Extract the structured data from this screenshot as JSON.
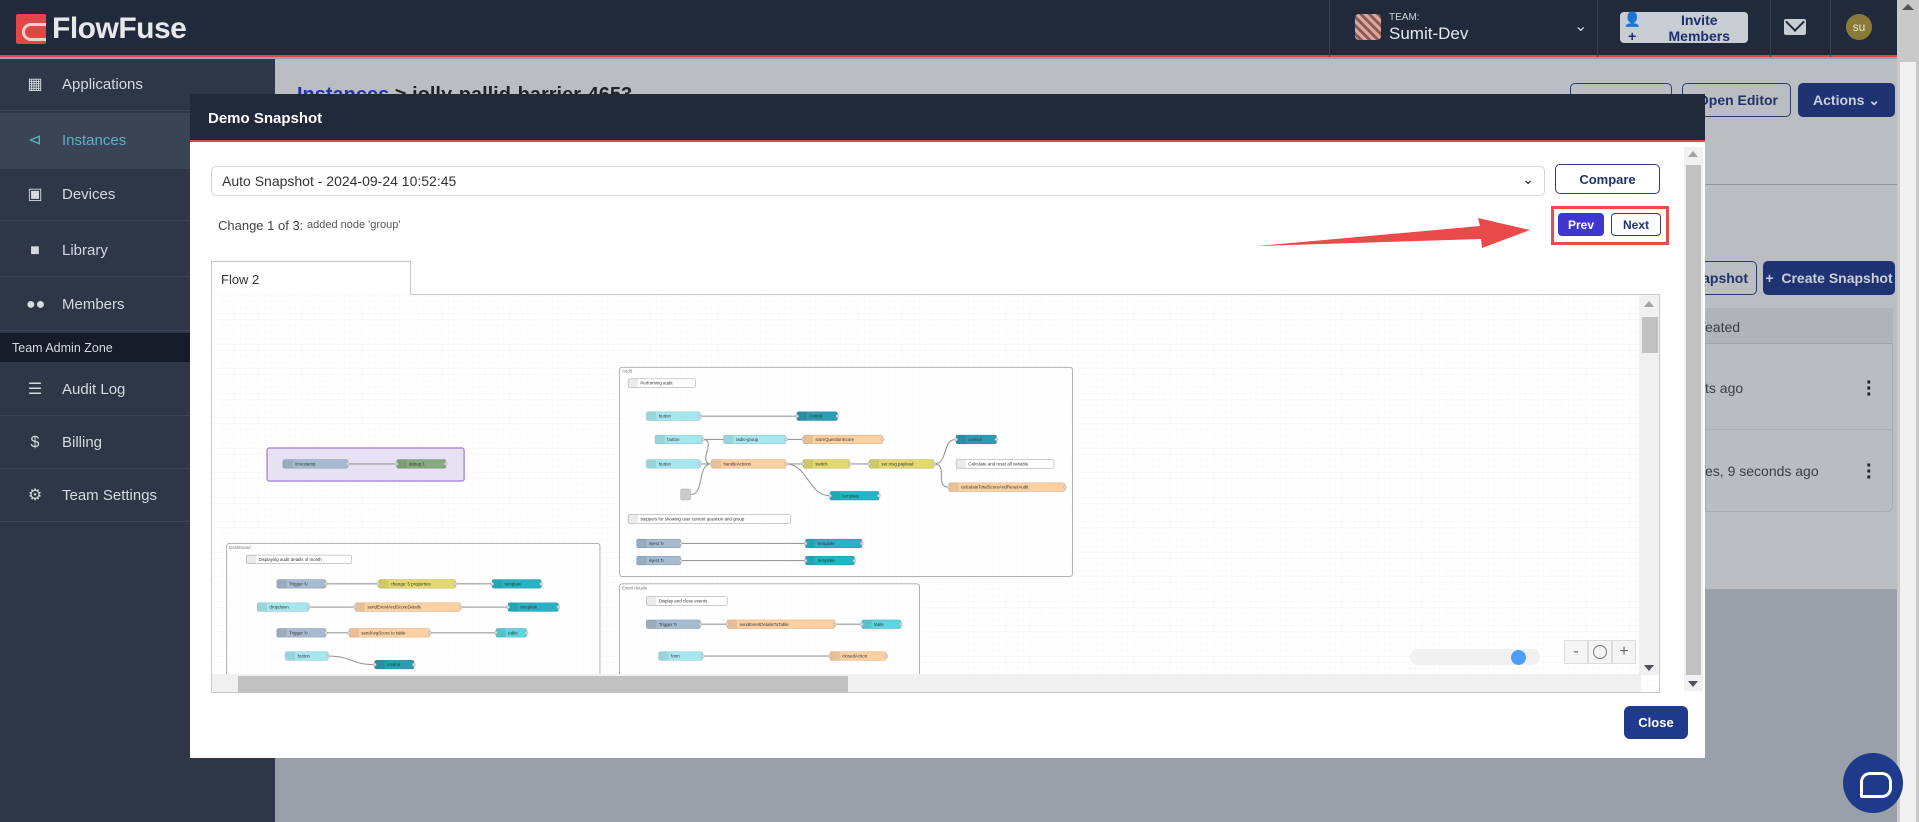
{
  "header": {
    "brand": "FlowFuse",
    "team_label": "TEAM:",
    "team_name": "Sumit-Dev",
    "invite_label": "Invite Members",
    "avatar_initials": "su"
  },
  "sidebar": {
    "items": [
      {
        "label": "Applications",
        "icon": "applications-icon"
      },
      {
        "label": "Instances",
        "icon": "instances-icon",
        "active": true
      },
      {
        "label": "Devices",
        "icon": "devices-icon"
      },
      {
        "label": "Library",
        "icon": "folder-icon"
      },
      {
        "label": "Members",
        "icon": "users-icon"
      }
    ],
    "admin_zone": "Team Admin Zone",
    "admin_items": [
      {
        "label": "Audit Log",
        "icon": "database-icon"
      },
      {
        "label": "Billing",
        "icon": "dollar-icon"
      },
      {
        "label": "Team Settings",
        "icon": "gear-icon"
      }
    ]
  },
  "background_page": {
    "breadcrumb_link": "Instances",
    "breadcrumb_current": "jolly-pallid-barrier-4653",
    "open_editor": "Open Editor",
    "actions": "Actions",
    "upload_snapshot_partial": "apshot",
    "create_snapshot": "Create Snapshot",
    "col_created_partial": "eated",
    "row1_time_partial": "ts ago",
    "row2_time_partial": "es, 9 seconds ago"
  },
  "modal": {
    "title": "Demo Snapshot",
    "snapshot_select_value": "Auto Snapshot - 2024-09-24 10:52:45",
    "compare_label": "Compare",
    "change_label": "Change 1 of 3:",
    "change_desc": "added node 'group'",
    "prev_label": "Prev",
    "next_label": "Next",
    "flow_tab": "Flow 2",
    "close_label": "Close",
    "zoom_out": "-",
    "zoom_in": "+",
    "accent_color": "#3f35d0",
    "highlight_color": "#e84c4c"
  },
  "flow": {
    "groups": [
      {
        "label": "Audit"
      },
      {
        "label": ""
      },
      {
        "label": "Dashboard"
      },
      {
        "label": "Event details"
      }
    ],
    "nodes": [
      {
        "label": "Performing audit",
        "type": "comment"
      },
      {
        "label": "button",
        "type": "ui"
      },
      {
        "label": "control",
        "type": "control"
      },
      {
        "label": "button",
        "type": "ui"
      },
      {
        "label": "radio-group",
        "type": "ui"
      },
      {
        "label": "storeQuestionScore",
        "type": "function"
      },
      {
        "label": "control",
        "type": "control"
      },
      {
        "label": "button",
        "type": "ui"
      },
      {
        "label": "handleActions",
        "type": "function"
      },
      {
        "label": "switch",
        "type": "change"
      },
      {
        "label": "set msg.payload",
        "type": "change"
      },
      {
        "label": "Calculate and reset all variable",
        "type": "comment"
      },
      {
        "label": "",
        "type": "link"
      },
      {
        "label": "template",
        "type": "template"
      },
      {
        "label": "calculateTotalScoreAndResetAudit",
        "type": "function"
      },
      {
        "label": "steppers for showing user current question and group",
        "type": "comment"
      },
      {
        "label": "inject ↻",
        "type": "inject"
      },
      {
        "label": "template",
        "type": "template"
      },
      {
        "label": "inject ↻",
        "type": "inject"
      },
      {
        "label": "template",
        "type": "template"
      },
      {
        "label": "timestamp",
        "type": "inject"
      },
      {
        "label": "debug 1",
        "type": "debug"
      },
      {
        "label": "Displaying audit details of month",
        "type": "comment"
      },
      {
        "label": "Trigger ↻",
        "type": "inject"
      },
      {
        "label": "change: 5 properties",
        "type": "change"
      },
      {
        "label": "template",
        "type": "template"
      },
      {
        "label": "dropdown",
        "type": "ui"
      },
      {
        "label": "sendEventAndScoreDetails",
        "type": "function"
      },
      {
        "label": "template",
        "type": "template"
      },
      {
        "label": "Trigger ↻",
        "type": "inject"
      },
      {
        "label": "sendAvgScore to table",
        "type": "function"
      },
      {
        "label": "table",
        "type": "table"
      },
      {
        "label": "button",
        "type": "ui"
      },
      {
        "label": "control",
        "type": "control"
      },
      {
        "label": "Display and close events",
        "type": "comment"
      },
      {
        "label": "Trigger ↻",
        "type": "inject"
      },
      {
        "label": "sendEventDetailsToTable",
        "type": "function"
      },
      {
        "label": "table",
        "type": "table"
      },
      {
        "label": "form",
        "type": "ui"
      },
      {
        "label": "closedAction",
        "type": "function"
      }
    ]
  }
}
